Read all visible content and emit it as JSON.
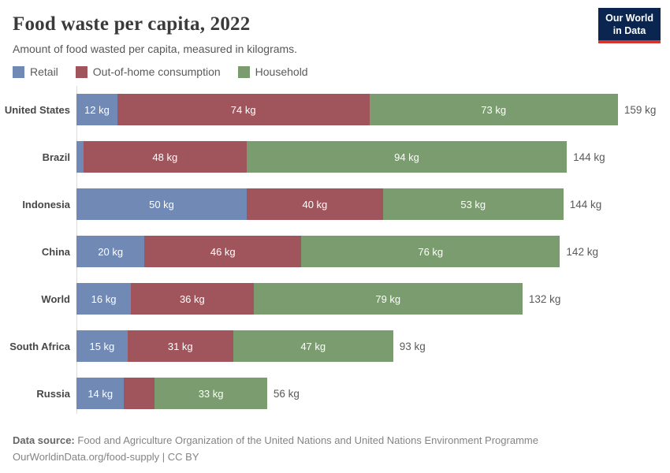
{
  "header": {
    "title": "Food waste per capita, 2022",
    "subtitle": "Amount of food wasted per capita, measured in kilograms."
  },
  "logo": {
    "line1": "Our World",
    "line2": "in Data",
    "bg_color": "#0a2650",
    "accent_color": "#d7332f"
  },
  "legend": {
    "items": [
      {
        "label": "Retail",
        "color": "#7189b5"
      },
      {
        "label": "Out-of-home consumption",
        "color": "#a0555c"
      },
      {
        "label": "Household",
        "color": "#7a9c6e"
      }
    ]
  },
  "chart_data": {
    "type": "bar",
    "orientation": "horizontal",
    "stacked": true,
    "title": "Food waste per capita, 2022",
    "unit": "kg",
    "grid": false,
    "legend_position": "top",
    "xlim": [
      0,
      160
    ],
    "categories": [
      "United States",
      "Brazil",
      "Indonesia",
      "China",
      "World",
      "South Africa",
      "Russia"
    ],
    "series": [
      {
        "name": "Retail",
        "color": "#7189b5",
        "values": [
          12,
          2,
          50,
          20,
          16,
          15,
          14
        ],
        "labels": [
          "12 kg",
          "",
          "50 kg",
          "20 kg",
          "16 kg",
          "15 kg",
          "14 kg"
        ]
      },
      {
        "name": "Out-of-home consumption",
        "color": "#a0555c",
        "values": [
          74,
          48,
          40,
          46,
          36,
          31,
          9
        ],
        "labels": [
          "74 kg",
          "48 kg",
          "40 kg",
          "46 kg",
          "36 kg",
          "31 kg",
          ""
        ]
      },
      {
        "name": "Household",
        "color": "#7a9c6e",
        "values": [
          73,
          94,
          53,
          76,
          79,
          47,
          33
        ],
        "labels": [
          "73 kg",
          "94 kg",
          "53 kg",
          "76 kg",
          "79 kg",
          "47 kg",
          "33 kg"
        ]
      }
    ],
    "totals": [
      159,
      144,
      144,
      142,
      132,
      93,
      56
    ],
    "total_labels": [
      "159 kg",
      "144 kg",
      "144 kg",
      "142 kg",
      "132 kg",
      "93 kg",
      "56 kg"
    ]
  },
  "footer": {
    "source_label": "Data source:",
    "source_text": "Food and Agriculture Organization of the United Nations and United Nations Environment Programme",
    "link": "OurWorldinData.org/food-supply",
    "separator": " | ",
    "license": "CC BY"
  }
}
